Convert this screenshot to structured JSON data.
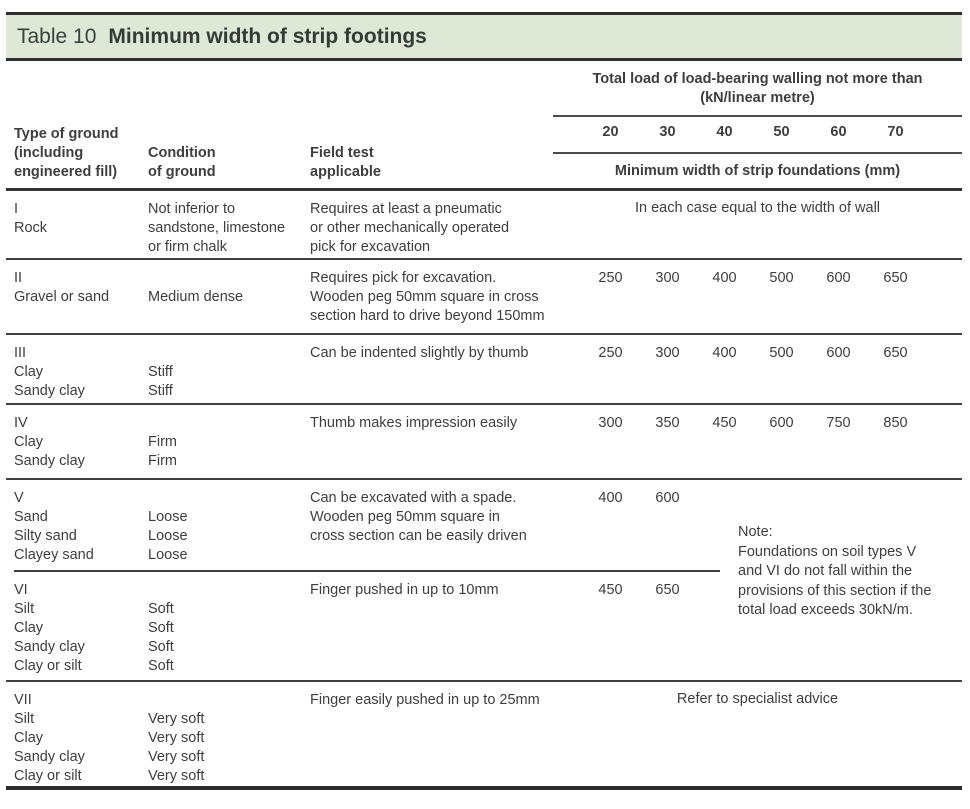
{
  "title": {
    "prefix": "Table 10",
    "main": "Minimum width of strip footings"
  },
  "columns": {
    "type_of_ground": [
      "Type of ground",
      "(including",
      "engineered fill)"
    ],
    "condition": [
      "Condition",
      "of ground"
    ],
    "field_test": [
      "Field test",
      "applicable"
    ]
  },
  "load_header": {
    "title_line1": "Total load of load-bearing walling not more than",
    "title_line2": "(kN/linear metre)",
    "values": [
      "20",
      "30",
      "40",
      "50",
      "60",
      "70"
    ],
    "subtitle": "Minimum width of strip foundations (mm)"
  },
  "rows": [
    {
      "type": [
        "I",
        "Rock"
      ],
      "condition": [
        "Not inferior to",
        "sandstone, limestone",
        "or firm chalk"
      ],
      "field_test": [
        "Requires at least a pneumatic",
        "or other mechanically operated",
        "pick for excavation"
      ],
      "span": "In each case equal to the width of wall"
    },
    {
      "type": [
        "II",
        "Gravel or sand"
      ],
      "condition": [
        "",
        "Medium dense"
      ],
      "field_test": [
        "Requires pick for excavation.",
        "Wooden peg 50mm square in cross",
        "section hard to drive beyond 150mm"
      ],
      "values": [
        "250",
        "300",
        "400",
        "500",
        "600",
        "650"
      ]
    },
    {
      "type": [
        "III",
        "Clay",
        "Sandy clay"
      ],
      "condition": [
        "",
        "Stiff",
        "Stiff"
      ],
      "field_test": [
        "Can be indented slightly by thumb"
      ],
      "values": [
        "250",
        "300",
        "400",
        "500",
        "600",
        "650"
      ]
    },
    {
      "type": [
        "IV",
        "Clay",
        "Sandy clay"
      ],
      "condition": [
        "",
        "Firm",
        "Firm"
      ],
      "field_test": [
        "Thumb makes impression easily"
      ],
      "values": [
        "300",
        "350",
        "450",
        "600",
        "750",
        "850"
      ]
    },
    {
      "type": [
        "V",
        "Sand",
        "Silty sand",
        "Clayey sand"
      ],
      "condition": [
        "",
        "Loose",
        "Loose",
        "Loose"
      ],
      "field_test": [
        "Can be excavated with a spade.",
        "Wooden peg 50mm square in",
        "cross section can be easily driven"
      ],
      "values": [
        "400",
        "600",
        "",
        "",
        "",
        ""
      ]
    },
    {
      "type": [
        "VI",
        "Silt",
        "Clay",
        "Sandy clay",
        "Clay or silt"
      ],
      "condition": [
        "",
        "Soft",
        "Soft",
        "Soft",
        "Soft"
      ],
      "field_test": [
        "Finger pushed in up to 10mm"
      ],
      "values": [
        "450",
        "650",
        "",
        "",
        "",
        ""
      ]
    },
    {
      "type": [
        "VII",
        "Silt",
        "Clay",
        "Sandy clay",
        "Clay or silt"
      ],
      "condition": [
        "",
        "Very soft",
        "Very soft",
        "Very soft",
        "Very soft"
      ],
      "field_test": [
        "Finger easily pushed in up to 25mm"
      ],
      "span": "Refer to specialist advice"
    }
  ],
  "note": {
    "lines": [
      "Note:",
      "Foundations on soil types V",
      "and VI do not fall within the",
      "provisions of this section if the",
      "total load exceeds 30kN/m."
    ]
  },
  "colors": {
    "band_background": "#dee8d6",
    "rule_dark": "#2f2f2f",
    "rule_medium": "#4a4a4a",
    "text": "#3e3e3e"
  }
}
